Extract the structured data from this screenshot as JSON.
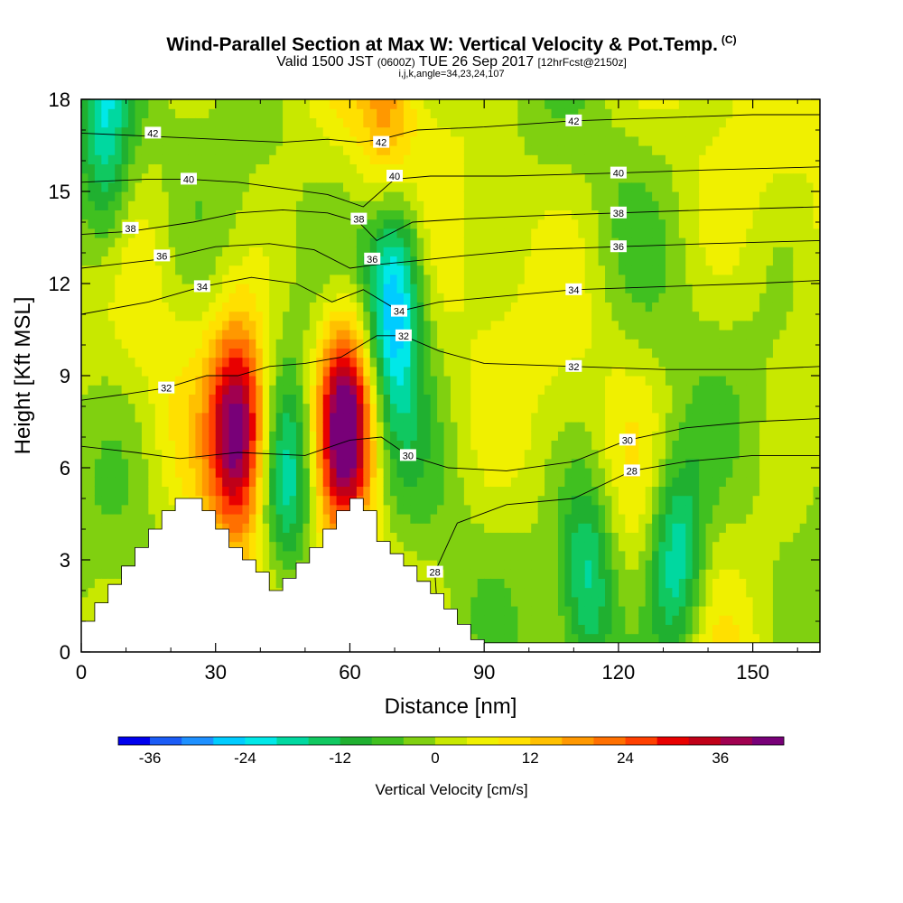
{
  "header": {
    "title": "Wind-Parallel Section at Max W: Vertical Velocity & Pot.Temp.",
    "title_mark": "(C)",
    "subtitle_a": "Valid 1500 JST",
    "subtitle_b": "(0600Z)",
    "subtitle_c": "TUE 26 Sep 2017",
    "subtitle_d": "[12hrFcst@2150z]",
    "subtitle_line2": "i,j,k,angle=34,23,24,107"
  },
  "chart_data": {
    "type": "heatmap",
    "xlabel": "Distance [nm]",
    "ylabel": "Height [Kft MSL]",
    "xlim": [
      0,
      165
    ],
    "ylim": [
      0,
      18
    ],
    "xticks": [
      0,
      30,
      60,
      90,
      120,
      150
    ],
    "yticks": [
      0,
      3,
      6,
      9,
      12,
      15,
      18
    ],
    "colorbar": {
      "label": "Vertical Velocity [cm/s]",
      "ticks": [
        -36,
        -24,
        -12,
        0,
        12,
        24,
        36
      ],
      "range": [
        -40,
        44
      ],
      "bin_width": 4,
      "colors": [
        "#0000ee",
        "#1b5cf6",
        "#1e90ff",
        "#00ccff",
        "#00e8e8",
        "#00d8a0",
        "#10c860",
        "#20b030",
        "#40c020",
        "#80d010",
        "#c8e800",
        "#f0f000",
        "#ffe000",
        "#ffc000",
        "#ff9800",
        "#ff7000",
        "#ff4000",
        "#e80000",
        "#c00018",
        "#a00050",
        "#780078"
      ]
    },
    "velocity_cells": [
      {
        "x": 35,
        "y": 7.2,
        "peak": 40
      },
      {
        "x": 59,
        "y": 7.5,
        "peak": 46
      },
      {
        "x": 70,
        "y": 12.0,
        "peak": -34
      },
      {
        "x": 46,
        "y": 5.5,
        "peak": -22
      },
      {
        "x": 5,
        "y": 16.5,
        "peak": -22
      },
      {
        "x": 133,
        "y": 3.0,
        "peak": -24
      },
      {
        "x": 113,
        "y": 2.5,
        "peak": -20
      },
      {
        "x": 69,
        "y": 17.0,
        "peak": 18
      }
    ],
    "theta_contour_labels": [
      {
        "value": "42",
        "x": 16,
        "y": 16.9
      },
      {
        "value": "42",
        "x": 67,
        "y": 16.6
      },
      {
        "value": "42",
        "x": 110,
        "y": 17.3
      },
      {
        "value": "40",
        "x": 24,
        "y": 15.4
      },
      {
        "value": "40",
        "x": 70,
        "y": 15.5
      },
      {
        "value": "40",
        "x": 120,
        "y": 15.6
      },
      {
        "value": "38",
        "x": 11,
        "y": 13.8
      },
      {
        "value": "38",
        "x": 62,
        "y": 14.1
      },
      {
        "value": "38",
        "x": 120,
        "y": 14.3
      },
      {
        "value": "36",
        "x": 18,
        "y": 12.9
      },
      {
        "value": "36",
        "x": 65,
        "y": 12.8
      },
      {
        "value": "36",
        "x": 120,
        "y": 13.2
      },
      {
        "value": "34",
        "x": 27,
        "y": 11.9
      },
      {
        "value": "34",
        "x": 71,
        "y": 11.1
      },
      {
        "value": "34",
        "x": 110,
        "y": 11.8
      },
      {
        "value": "32",
        "x": 19,
        "y": 8.6
      },
      {
        "value": "32",
        "x": 72,
        "y": 10.3
      },
      {
        "value": "32",
        "x": 110,
        "y": 9.3
      },
      {
        "value": "30",
        "x": 73,
        "y": 6.4
      },
      {
        "value": "30",
        "x": 122,
        "y": 6.9
      },
      {
        "value": "28",
        "x": 123,
        "y": 5.9
      },
      {
        "value": "28",
        "x": 79,
        "y": 2.6
      }
    ],
    "theta_contours": [
      {
        "value": 42,
        "points": [
          [
            0,
            16.9
          ],
          [
            15,
            16.8
          ],
          [
            30,
            16.7
          ],
          [
            45,
            16.6
          ],
          [
            55,
            16.7
          ],
          [
            62,
            16.6
          ],
          [
            67,
            16.7
          ],
          [
            75,
            17.0
          ],
          [
            90,
            17.1
          ],
          [
            110,
            17.3
          ],
          [
            130,
            17.4
          ],
          [
            150,
            17.5
          ],
          [
            165,
            17.5
          ]
        ]
      },
      {
        "value": 40,
        "points": [
          [
            0,
            15.3
          ],
          [
            15,
            15.4
          ],
          [
            24,
            15.4
          ],
          [
            35,
            15.3
          ],
          [
            45,
            15.1
          ],
          [
            55,
            14.9
          ],
          [
            63,
            14.5
          ],
          [
            70,
            15.4
          ],
          [
            78,
            15.5
          ],
          [
            95,
            15.5
          ],
          [
            120,
            15.6
          ],
          [
            140,
            15.7
          ],
          [
            165,
            15.8
          ]
        ]
      },
      {
        "value": 38,
        "points": [
          [
            0,
            13.6
          ],
          [
            11,
            13.7
          ],
          [
            25,
            14.0
          ],
          [
            35,
            14.3
          ],
          [
            45,
            14.4
          ],
          [
            55,
            14.3
          ],
          [
            62,
            14.0
          ],
          [
            66,
            13.4
          ],
          [
            74,
            14.0
          ],
          [
            85,
            14.1
          ],
          [
            100,
            14.2
          ],
          [
            120,
            14.3
          ],
          [
            140,
            14.4
          ],
          [
            165,
            14.5
          ]
        ]
      },
      {
        "value": 36,
        "points": [
          [
            0,
            12.5
          ],
          [
            18,
            12.8
          ],
          [
            30,
            13.2
          ],
          [
            42,
            13.3
          ],
          [
            52,
            13.1
          ],
          [
            60,
            12.5
          ],
          [
            65,
            12.6
          ],
          [
            72,
            12.7
          ],
          [
            85,
            12.9
          ],
          [
            100,
            13.1
          ],
          [
            120,
            13.2
          ],
          [
            140,
            13.3
          ],
          [
            165,
            13.4
          ]
        ]
      },
      {
        "value": 34,
        "points": [
          [
            0,
            11.0
          ],
          [
            15,
            11.4
          ],
          [
            27,
            11.9
          ],
          [
            38,
            12.2
          ],
          [
            48,
            12.0
          ],
          [
            56,
            11.4
          ],
          [
            63,
            11.8
          ],
          [
            71,
            11.1
          ],
          [
            80,
            11.4
          ],
          [
            95,
            11.6
          ],
          [
            110,
            11.8
          ],
          [
            130,
            11.9
          ],
          [
            150,
            12.0
          ],
          [
            165,
            12.1
          ]
        ]
      },
      {
        "value": 32,
        "points": [
          [
            0,
            8.2
          ],
          [
            10,
            8.4
          ],
          [
            19,
            8.6
          ],
          [
            28,
            9.0
          ],
          [
            35,
            9.0
          ],
          [
            42,
            9.3
          ],
          [
            50,
            9.4
          ],
          [
            58,
            9.6
          ],
          [
            66,
            10.3
          ],
          [
            72,
            10.3
          ],
          [
            80,
            9.8
          ],
          [
            90,
            9.4
          ],
          [
            110,
            9.3
          ],
          [
            130,
            9.2
          ],
          [
            150,
            9.2
          ],
          [
            165,
            9.3
          ]
        ]
      },
      {
        "value": 30,
        "points": [
          [
            0,
            6.7
          ],
          [
            12,
            6.5
          ],
          [
            22,
            6.3
          ],
          [
            35,
            6.5
          ],
          [
            50,
            6.4
          ],
          [
            60,
            6.9
          ],
          [
            67,
            7.0
          ],
          [
            73,
            6.4
          ],
          [
            82,
            6.0
          ],
          [
            95,
            5.9
          ],
          [
            110,
            6.2
          ],
          [
            122,
            6.9
          ],
          [
            135,
            7.3
          ],
          [
            150,
            7.5
          ],
          [
            165,
            7.6
          ]
        ]
      },
      {
        "value": 28,
        "points": [
          [
            80,
            0.4
          ],
          [
            79,
            2.6
          ],
          [
            84,
            4.2
          ],
          [
            95,
            4.8
          ],
          [
            110,
            5.0
          ],
          [
            123,
            5.9
          ],
          [
            135,
            6.2
          ],
          [
            150,
            6.4
          ],
          [
            165,
            6.4
          ]
        ]
      }
    ],
    "terrain": [
      [
        0,
        1.0
      ],
      [
        3,
        1.0
      ],
      [
        3,
        1.6
      ],
      [
        6,
        1.6
      ],
      [
        6,
        2.2
      ],
      [
        9,
        2.2
      ],
      [
        9,
        2.8
      ],
      [
        12,
        2.8
      ],
      [
        12,
        3.4
      ],
      [
        15,
        3.4
      ],
      [
        15,
        4.0
      ],
      [
        18,
        4.0
      ],
      [
        18,
        4.6
      ],
      [
        21,
        4.6
      ],
      [
        21,
        5.0
      ],
      [
        24,
        5.0
      ],
      [
        24,
        5.0
      ],
      [
        27,
        5.0
      ],
      [
        27,
        4.6
      ],
      [
        30,
        4.6
      ],
      [
        30,
        4.0
      ],
      [
        33,
        4.0
      ],
      [
        33,
        3.4
      ],
      [
        36,
        3.4
      ],
      [
        36,
        3.0
      ],
      [
        39,
        3.0
      ],
      [
        39,
        2.6
      ],
      [
        42,
        2.6
      ],
      [
        42,
        2.0
      ],
      [
        45,
        2.0
      ],
      [
        45,
        2.4
      ],
      [
        48,
        2.4
      ],
      [
        48,
        2.9
      ],
      [
        51,
        2.9
      ],
      [
        51,
        3.4
      ],
      [
        54,
        3.4
      ],
      [
        54,
        4.0
      ],
      [
        57,
        4.0
      ],
      [
        57,
        4.6
      ],
      [
        60,
        4.6
      ],
      [
        60,
        5.0
      ],
      [
        63,
        5.0
      ],
      [
        63,
        4.6
      ],
      [
        66,
        4.6
      ],
      [
        66,
        3.6
      ],
      [
        69,
        3.6
      ],
      [
        69,
        3.2
      ],
      [
        72,
        3.2
      ],
      [
        72,
        2.8
      ],
      [
        75,
        2.8
      ],
      [
        75,
        2.3
      ],
      [
        78,
        2.3
      ],
      [
        78,
        1.9
      ],
      [
        81,
        1.9
      ],
      [
        81,
        1.4
      ],
      [
        84,
        1.4
      ],
      [
        84,
        0.9
      ],
      [
        87,
        0.9
      ],
      [
        87,
        0.4
      ],
      [
        90,
        0.4
      ],
      [
        90,
        0.3
      ],
      [
        165,
        0.3
      ]
    ]
  }
}
